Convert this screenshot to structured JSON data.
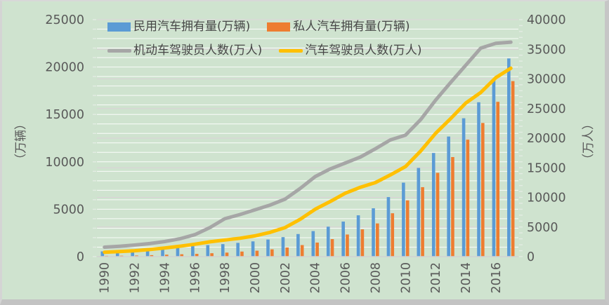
{
  "chart_data": {
    "type": "combo",
    "title": "",
    "categories": [
      1990,
      1991,
      1992,
      1993,
      1994,
      1995,
      1996,
      1997,
      1998,
      1999,
      2000,
      2001,
      2002,
      2003,
      2004,
      2005,
      2006,
      2007,
      2008,
      2009,
      2010,
      2011,
      2012,
      2013,
      2014,
      2015,
      2016,
      2017
    ],
    "x_tick_labels": [
      "1990",
      "1992",
      "1994",
      "1996",
      "1998",
      "2000",
      "2002",
      "2004",
      "2006",
      "2008",
      "2010",
      "2012",
      "2014",
      "2016"
    ],
    "series": [
      {
        "name": "民用汽车拥有量(万辆)",
        "type": "bar",
        "axis": "left",
        "color": "#5B9BD5",
        "values": [
          551.4,
          606.1,
          691.7,
          817.6,
          941.9,
          1040,
          1100.1,
          1219.1,
          1319.3,
          1452.9,
          1608.9,
          1802,
          2053.2,
          2382.9,
          2693.7,
          3159.7,
          3697.4,
          4358.4,
          5099.6,
          6280.6,
          7801.8,
          9356.3,
          10933.1,
          12670.1,
          14598.1,
          16284.5,
          18574.5,
          20906.7
        ]
      },
      {
        "name": "私人汽车拥有量(万辆)",
        "type": "bar",
        "axis": "left",
        "color": "#ED7D31",
        "values": [
          81.6,
          96,
          118.2,
          155.8,
          205.4,
          250,
          289.7,
          358.4,
          423.7,
          533.9,
          625.3,
          770.8,
          969,
          1219.2,
          1481.7,
          1848.1,
          2333.3,
          2876.2,
          3501.4,
          4574.9,
          5938.7,
          7326.8,
          8838.6,
          10501.7,
          12339.4,
          14099.1,
          16330.2,
          18515.1
        ]
      },
      {
        "name": "机动车驾驶员人数(万人)",
        "type": "line",
        "axis": "right",
        "color": "#A6A6A6",
        "values": [
          1600,
          1750,
          1950,
          2200,
          2550,
          3000,
          3700,
          4900,
          6400,
          7100,
          7900,
          8700,
          9700,
          11500,
          13500,
          14800,
          15800,
          16800,
          18200,
          19700,
          20500,
          23100,
          26400,
          29400,
          32300,
          35200,
          36000,
          36200
        ]
      },
      {
        "name": "汽车驾驶员人数(万人)",
        "type": "line",
        "axis": "right",
        "color": "#FFC000",
        "values": [
          750,
          850,
          1000,
          1200,
          1450,
          1750,
          2100,
          2500,
          2800,
          3100,
          3500,
          4100,
          4900,
          6300,
          8000,
          9300,
          10700,
          11700,
          12500,
          13800,
          15200,
          17800,
          20800,
          23300,
          25900,
          27700,
          30200,
          31800
        ]
      }
    ],
    "left_axis": {
      "title": "（万辆）",
      "min": 0,
      "max": 25000,
      "major_step": 5000,
      "minor_step": 1000,
      "tick_labels": [
        "0",
        "5000",
        "10000",
        "15000",
        "20000",
        "25000"
      ]
    },
    "right_axis": {
      "title": "（万人）",
      "min": 0,
      "max": 40000,
      "major_step": 5000,
      "minor_step": 1000,
      "tick_labels": [
        "0",
        "5000",
        "10000",
        "15000",
        "20000",
        "25000",
        "30000",
        "35000",
        "40000"
      ]
    },
    "grid": "horizontal minor gridlines on, white; major right-axis lines pale pink",
    "legend_position": "top, two rows"
  },
  "colors": {
    "background": "#cfe3cf",
    "minor_gridline": "#ffffff",
    "major_gridline": "#ddd0d8",
    "axis_line": "#d2d2d2",
    "tick_mark": "#e3ece3",
    "label_text": "#595959",
    "legend_text": "#474747"
  }
}
